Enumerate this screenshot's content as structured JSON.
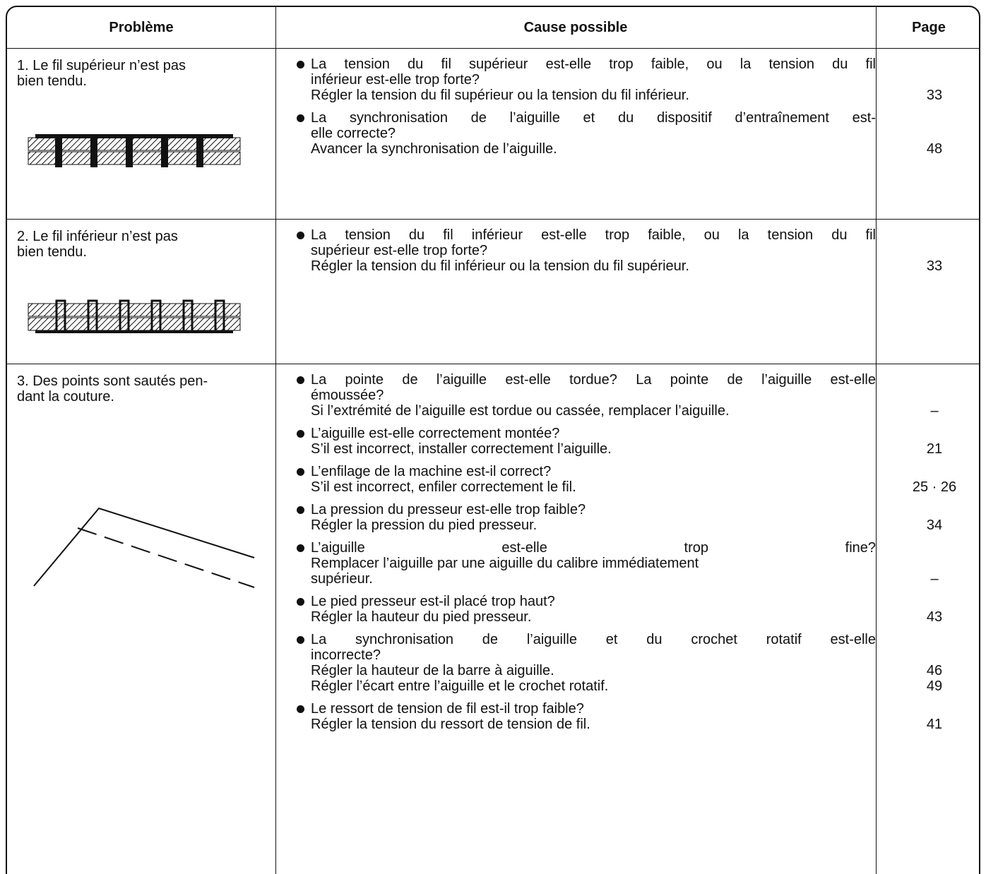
{
  "header": {
    "columns": [
      "Problème",
      "Cause possible",
      "Page"
    ]
  },
  "rows": [
    {
      "problem": [
        "1. Le fil supérieur n’est pas",
        "bien tendu."
      ],
      "causes": [
        {
          "question": [
            "La tension du fil supérieur est-elle trop faible, ou la tension du fil",
            "inférieur est-elle trop forte?"
          ],
          "remedies": [
            {
              "text": "Régler la tension du fil supérieur ou la tension du fil inférieur.",
              "page": "33"
            }
          ]
        },
        {
          "question": [
            "La synchronisation de l’aiguille et du dispositif d’entraînement est-",
            "elle correcte?"
          ],
          "remedies": [
            {
              "text": "Avancer la synchronisation de l’aiguille.",
              "page": "48"
            }
          ]
        }
      ]
    },
    {
      "problem": [
        "2. Le fil inférieur n’est pas",
        "bien tendu."
      ],
      "causes": [
        {
          "question": [
            "La tension du fil inférieur est-elle trop faible, ou la tension du fil",
            "supérieur est-elle trop forte?"
          ],
          "remedies": [
            {
              "text": "Régler la tension du fil inférieur ou la tension du fil supérieur.",
              "page": "33"
            }
          ]
        }
      ]
    },
    {
      "problem": [
        "3. Des points sont sautés pen-",
        "dant la couture."
      ],
      "causes": [
        {
          "question": [
            "La pointe de l’aiguille est-elle tordue? La pointe de l’aiguille est-elle",
            "émoussée?"
          ],
          "remedies": [
            {
              "text": "Si l’extrémité de l’aiguille est tordue ou cassée, remplacer l’aiguille.",
              "page": "–"
            }
          ]
        },
        {
          "question": [
            "L’aiguille est-elle correctement montée?"
          ],
          "remedies": [
            {
              "text": "S’il est incorrect, installer correctement l’aiguille.",
              "page": "21"
            }
          ]
        },
        {
          "question": [
            "L’enfilage de la machine est-il correct?"
          ],
          "remedies": [
            {
              "text": "S’il est incorrect, enfiler correctement le fil.",
              "page": "25 · 26"
            }
          ]
        },
        {
          "question": [
            "La pression du presseur est-elle trop faible?"
          ],
          "remedies": [
            {
              "text": "Régler la pression du pied presseur.",
              "page": "34"
            }
          ]
        },
        {
          "question": [
            "L’aiguille est-elle trop fine?",
            "Remplacer l’aiguille par une aiguille du calibre immédiatement"
          ],
          "remedies": [
            {
              "text": "supérieur.",
              "page": "–"
            }
          ]
        },
        {
          "question": [
            "Le pied presseur est-il placé trop haut?"
          ],
          "remedies": [
            {
              "text": "Régler la hauteur du pied presseur.",
              "page": "43"
            }
          ]
        },
        {
          "question": [
            "La synchronisation de l’aiguille et du crochet rotatif est-elle",
            "incorrecte?"
          ],
          "remedies": [
            {
              "text": "Régler la hauteur de la barre à aiguille.",
              "page": "46"
            },
            {
              "text": "Régler l’écart entre l’aiguille et le crochet rotatif.",
              "page": "49"
            }
          ]
        },
        {
          "question": [
            "Le ressort de tension de fil est-il trop faible?"
          ],
          "remedies": [
            {
              "text": "Régler la tension du ressort de tension de fil.",
              "page": "41"
            }
          ]
        }
      ]
    }
  ]
}
